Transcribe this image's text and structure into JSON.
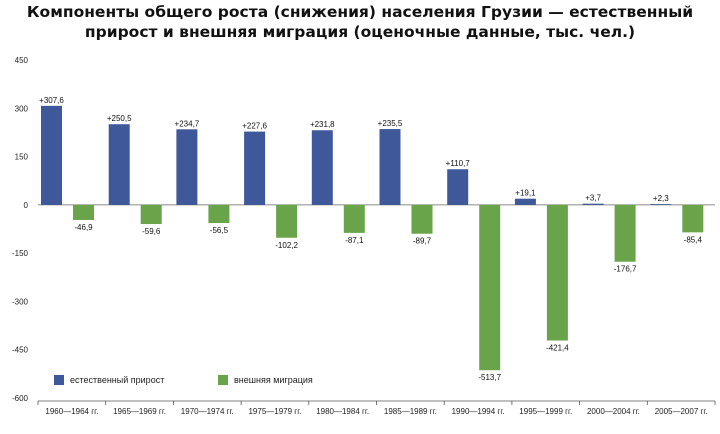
{
  "chart_data": {
    "type": "bar",
    "title_lines": [
      "Компоненты общего роста (снижения) населения Грузии — естественный",
      "прирост и внешняя миграция (оценочные данные, тыс. чел.)"
    ],
    "categories": [
      "1960—1964 гг.",
      "1965—1969 гг.",
      "1970—1974 гг.",
      "1975—1979 гг.",
      "1980—1984 гг.",
      "1985—1989 гг.",
      "1990—1994 гг.",
      "1995—1999 гг.",
      "2000—2004 гг.",
      "2005—2007 гг."
    ],
    "series": [
      {
        "name": "естественный прирост",
        "color": "#3f5899",
        "values": [
          307.6,
          250.5,
          234.7,
          227.6,
          231.8,
          235.5,
          110.7,
          19.1,
          3.7,
          2.3
        ],
        "labels": [
          "+307,6",
          "+250,5",
          "+234,7",
          "+227,6",
          "+231,8",
          "+235,5",
          "+110,7",
          "+19,1",
          "+3,7",
          "+2,3"
        ]
      },
      {
        "name": "внешняя миграция",
        "color": "#6aa44a",
        "values": [
          -46.9,
          -59.6,
          -56.5,
          -102.2,
          -87.1,
          -89.7,
          -513.7,
          -421.4,
          -176.7,
          -85.4
        ],
        "labels": [
          "-46,9",
          "-59,6",
          "-56,5",
          "-102,2",
          "-87,1",
          "-89,7",
          "-513,7",
          "-421,4",
          "-176,7",
          "-85,4"
        ]
      }
    ],
    "yticks": [
      450,
      300,
      150,
      0,
      -150,
      -300,
      -450,
      -600
    ],
    "ytick_labels": [
      "450",
      "300",
      "150",
      "0",
      "-150",
      "-300",
      "-450",
      "-600"
    ],
    "ylim": [
      -600,
      450
    ],
    "grid": false,
    "legend_position": "bottom-left"
  }
}
